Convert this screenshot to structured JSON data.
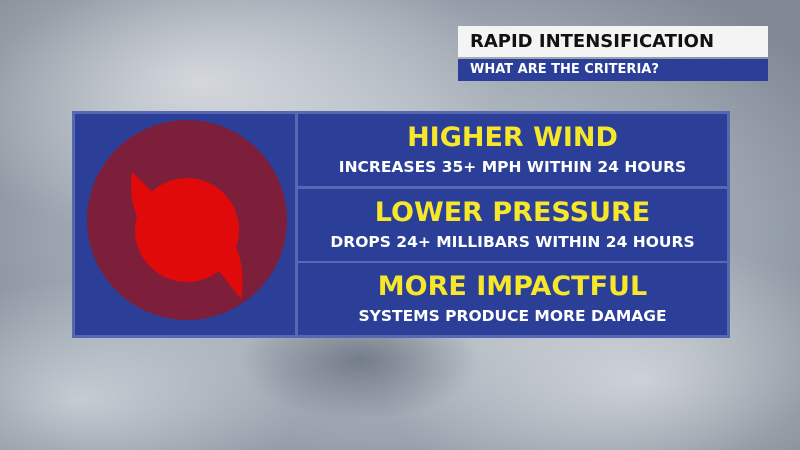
{
  "header": {
    "title": "RAPID INTENSIFICATION",
    "subtitle": "WHAT ARE THE CRITERIA?"
  },
  "criteria": [
    {
      "title": "HIGHER WIND",
      "description": "INCREASES 35+ MPH WITHIN 24 HOURS"
    },
    {
      "title": "LOWER PRESSURE",
      "description": "DROPS 24+ MILLIBARS WITHIN 24 HOURS"
    },
    {
      "title": "MORE IMPACTFUL",
      "description": "SYSTEMS PRODUCE MORE DAMAGE"
    }
  ]
}
